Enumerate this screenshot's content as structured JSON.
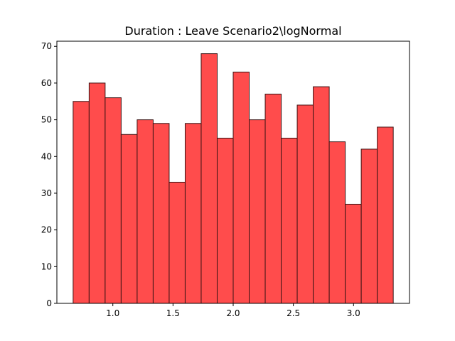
{
  "chart_data": {
    "type": "bar",
    "title": "Duration : Leave Scenario2\\logNormal",
    "xlabel": "",
    "ylabel": "",
    "bin_start": 0.67,
    "bin_end": 3.33,
    "values": [
      55,
      60,
      56,
      46,
      50,
      49,
      33,
      49,
      68,
      45,
      63,
      50,
      57,
      45,
      54,
      59,
      44,
      27,
      42,
      48
    ],
    "xlim": [
      0.535,
      3.465
    ],
    "ylim": [
      0,
      71.4
    ],
    "xticks": [
      1.0,
      1.5,
      2.0,
      2.5,
      3.0
    ],
    "xtick_labels": [
      "1.0",
      "1.5",
      "2.0",
      "2.5",
      "3.0"
    ],
    "yticks": [
      0,
      10,
      20,
      30,
      40,
      50,
      60,
      70
    ],
    "ytick_labels": [
      "0",
      "10",
      "20",
      "30",
      "40",
      "50",
      "60",
      "70"
    ],
    "bar_color": "#ff4c4c",
    "edge_color": "#3a1414",
    "grid": false,
    "legend": "none"
  }
}
